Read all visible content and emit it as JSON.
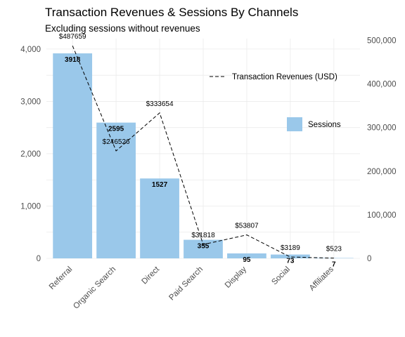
{
  "chart_data": {
    "type": "bar",
    "title": "Transaction Revenues & Sessions By Channels",
    "subtitle": "Excluding sessions without revenues",
    "categories": [
      "Referral",
      "Organic Search",
      "Direct",
      "Paid Search",
      "Display",
      "Social",
      "Affiliates"
    ],
    "series": [
      {
        "name": "Sessions",
        "type": "bar",
        "axis": "left",
        "color": "#9ac8ea",
        "values": [
          3918,
          2595,
          1527,
          355,
          95,
          73,
          7
        ],
        "labels": [
          "3918",
          "2595",
          "1527",
          "355",
          "95",
          "73",
          "7"
        ]
      },
      {
        "name": "Transaction Revenues (USD)",
        "type": "line",
        "style": "dashed",
        "axis": "right",
        "color": "#000000",
        "values": [
          487659,
          246526,
          333654,
          31818,
          53807,
          3189,
          523
        ],
        "labels": [
          "$487659",
          "$246526",
          "$333654",
          "$31818",
          "$53807",
          "$3189",
          "$523"
        ]
      }
    ],
    "y_left": {
      "ylim": [
        0,
        4200
      ],
      "ticks": [
        0,
        1000,
        2000,
        3000,
        4000
      ],
      "tick_labels": [
        "0",
        "1,000",
        "2,000",
        "3,000",
        "4,000"
      ]
    },
    "y_right": {
      "ylim": [
        0,
        504000
      ],
      "ticks": [
        0,
        100000,
        200000,
        300000,
        400000,
        500000
      ],
      "tick_labels": [
        "0",
        "100,000",
        "200,000",
        "300,000",
        "400,000",
        "500,000"
      ]
    },
    "xlabel": "",
    "ylabel": "",
    "x_tick_rotation": 45,
    "grid": true,
    "legend": {
      "placement": "right",
      "entries": [
        "Transaction Revenues (USD)",
        "Sessions"
      ]
    }
  }
}
